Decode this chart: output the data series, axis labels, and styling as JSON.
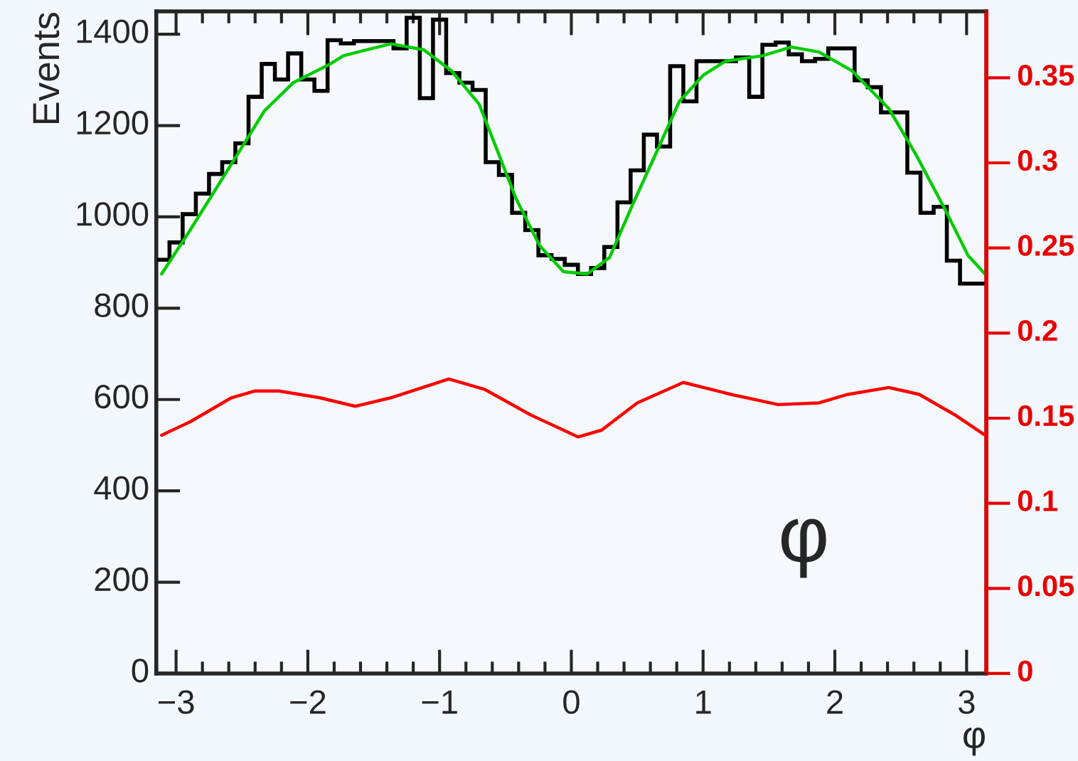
{
  "chart_data": {
    "type": "histogram",
    "xlabel": "φ",
    "ylabel": "Events",
    "annotations": [
      "φ"
    ],
    "bins": [
      -3.15,
      -3.05,
      -2.95,
      -2.85,
      -2.75,
      -2.65,
      -2.55,
      -2.45,
      -2.35,
      -2.25,
      -2.15,
      -2.05,
      -1.95,
      -1.85,
      -1.75,
      -1.65,
      -1.55,
      -1.45,
      -1.35,
      -1.25,
      -1.15,
      -1.05,
      -0.95,
      -0.85,
      -0.75,
      -0.65,
      -0.55,
      -0.45,
      -0.35,
      -0.25,
      -0.15,
      -0.05,
      0.05,
      0.15,
      0.25,
      0.35,
      0.45,
      0.55,
      0.65,
      0.75,
      0.85,
      0.95,
      1.05,
      1.15,
      1.25,
      1.35,
      1.45,
      1.55,
      1.65,
      1.75,
      1.85,
      1.95,
      2.05,
      2.15,
      2.25,
      2.35,
      2.45,
      2.55,
      2.65,
      2.75,
      2.85,
      2.95,
      3.05,
      3.15
    ],
    "series": [
      {
        "color": "#000000",
        "values": [
          906,
          944,
          1006,
          1051,
          1094,
          1120,
          1161,
          1263,
          1335,
          1301,
          1358,
          1301,
          1276,
          1387,
          1380,
          1385,
          1385,
          1385,
          1369,
          1436,
          1260,
          1432,
          1315,
          1294,
          1278,
          1120,
          1092,
          1009,
          971,
          916,
          908,
          895,
          875,
          888,
          934,
          1032,
          1102,
          1180,
          1154,
          1330,
          1253,
          1341,
          1341,
          1341,
          1349,
          1263,
          1377,
          1382,
          1356,
          1341,
          1346,
          1369,
          1369,
          1299,
          1284,
          1229,
          1229,
          1097,
          1009,
          1022,
          904,
          854,
          854
        ]
      },
      {
        "type": "line",
        "color": "#00cc00",
        "x": [
          -3.11,
          -2.9,
          -2.54,
          -2.33,
          -2.11,
          -1.83,
          -1.73,
          -1.37,
          -1.12,
          -0.91,
          -0.7,
          -0.56,
          -0.42,
          -0.24,
          -0.06,
          0.12,
          0.29,
          0.47,
          0.65,
          0.82,
          1.0,
          1.17,
          1.45,
          1.67,
          1.88,
          2.13,
          2.41,
          2.62,
          2.83,
          3.01,
          3.14
        ],
        "values": [
          875,
          968,
          1134,
          1232,
          1294,
          1335,
          1353,
          1379,
          1366,
          1320,
          1247,
          1144,
          1040,
          937,
          880,
          875,
          911,
          1030,
          1144,
          1253,
          1310,
          1341,
          1353,
          1372,
          1361,
          1320,
          1237,
          1134,
          1020,
          916,
          875
        ]
      },
      {
        "type": "line",
        "axis": "y2",
        "color": "#ff0000",
        "x": [
          -3.11,
          -2.89,
          -2.58,
          -2.4,
          -2.22,
          -1.91,
          -1.64,
          -1.37,
          -0.93,
          -0.66,
          -0.31,
          0.05,
          0.23,
          0.5,
          0.85,
          1.21,
          1.57,
          1.88,
          2.1,
          2.41,
          2.64,
          2.91,
          3.14
        ],
        "values": [
          0.14,
          0.148,
          0.162,
          0.166,
          0.166,
          0.162,
          0.157,
          0.162,
          0.173,
          0.167,
          0.152,
          0.139,
          0.143,
          0.159,
          0.171,
          0.164,
          0.158,
          0.159,
          0.164,
          0.168,
          0.164,
          0.152,
          0.14
        ]
      }
    ],
    "xlim": [
      -3.15,
      3.15
    ],
    "ylim": [
      0,
      1450
    ],
    "y2lim": [
      0,
      0.389
    ],
    "xticks": [
      {
        "value": -3,
        "label": "−3"
      },
      {
        "value": -2,
        "label": "−2"
      },
      {
        "value": -1,
        "label": "−1"
      },
      0,
      1,
      2,
      3
    ],
    "yticks": [
      0,
      200,
      400,
      600,
      800,
      1000,
      1200,
      1400
    ],
    "y2ticks": [
      0,
      0.05,
      0.1,
      0.15,
      0.2,
      0.25,
      0.3,
      0.35
    ],
    "grid": false,
    "legend": false
  }
}
